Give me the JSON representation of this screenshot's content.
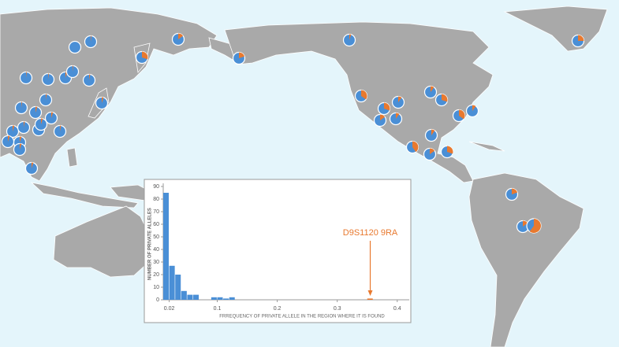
{
  "map": {
    "pie_markers": [
      0,
      0.02,
      0.3,
      0.15,
      0.02,
      0.02,
      0.05,
      0.02,
      0.03,
      0.02,
      0.03,
      0.05,
      0.05,
      0.05,
      0.05,
      0.03,
      0.05,
      0.05,
      0.03,
      0.05,
      0.05,
      0.05,
      0.05,
      0.2,
      0.05,
      0.35,
      0.3,
      0.1,
      0.15,
      0.1,
      0.1,
      0.3,
      0.1,
      0.35,
      0.1,
      0.4,
      0.15,
      0.3,
      0.25,
      0.2,
      0.15,
      0.6
    ],
    "blue": "#4a8fd6",
    "orange": "#e8792f"
  },
  "chart_data": {
    "type": "histogram",
    "bins": [
      0.01,
      0.02,
      0.03,
      0.04,
      0.05,
      0.06,
      0.07,
      0.08,
      0.09,
      0.1,
      0.11,
      0.12,
      0.13,
      0.14,
      0.15,
      0.16,
      0.17,
      0.18,
      0.19,
      0.2,
      0.21,
      0.22,
      0.23,
      0.24,
      0.25,
      0.26,
      0.27,
      0.28,
      0.29,
      0.3,
      0.31,
      0.32,
      0.33,
      0.34,
      0.35,
      0.36,
      0.37
    ],
    "values": [
      85,
      27,
      20,
      7,
      4,
      4,
      0,
      0,
      2,
      2,
      1,
      2,
      0,
      0,
      0,
      0,
      0,
      0,
      0,
      0,
      0,
      0,
      0,
      0,
      0,
      0,
      0,
      0,
      0,
      0,
      0,
      0,
      0,
      0,
      1,
      0
    ],
    "color": "#4a8fd6",
    "highlight_color": "#e8792f",
    "highlight_bin": 34,
    "annotation": "D9S1120 9RA",
    "xlabel": "FRREQUENCY OF PRIVATE ALLELE IN THE REGION WHERE IT IS FOUND",
    "ylabel": "NUMBER OF PRIVATE ALLELES",
    "xlim": [
      0.01,
      0.42
    ],
    "ylim": [
      0,
      90
    ],
    "xticks": [
      0.02,
      0.1,
      0.2,
      0.3,
      0.4
    ],
    "yticks": [
      0,
      10,
      20,
      30,
      40,
      50,
      60,
      70,
      80,
      90
    ]
  }
}
